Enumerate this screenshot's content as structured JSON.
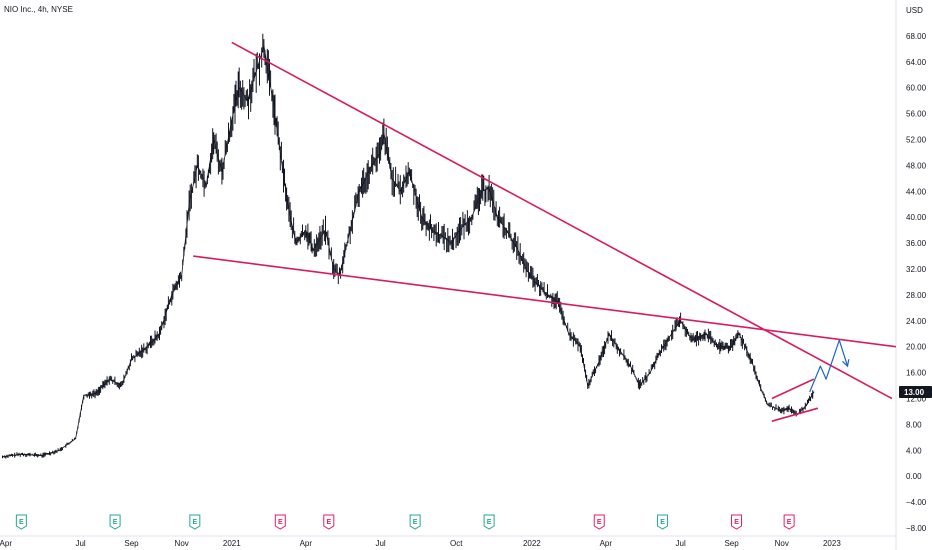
{
  "title": "NIO Inc., 4h, NYSE",
  "chart_data": {
    "type": "line",
    "title": "NIO Inc., 4h, NYSE",
    "ylabel": "USD",
    "currency_label": "USD",
    "ylim": [
      -8,
      72
    ],
    "yticks": [
      68,
      64,
      60,
      56,
      52,
      48,
      44,
      40,
      36,
      32,
      28,
      24,
      20,
      16,
      12,
      8,
      4,
      0,
      -4,
      -8
    ],
    "ytick_labels": [
      "68.00",
      "64.00",
      "60.00",
      "56.00",
      "52.00",
      "48.00",
      "44.00",
      "40.00",
      "36.00",
      "32.00",
      "28.00",
      "24.00",
      "20.00",
      "16.00",
      "12.00",
      "8.00",
      "4.00",
      "0.00",
      "−4.00",
      "−8.00"
    ],
    "xtick_labels": [
      "Apr",
      "Jul",
      "Sep",
      "Nov",
      "2021",
      "Apr",
      "Jul",
      "Oct",
      "2022",
      "Apr",
      "Jul",
      "Sep",
      "Nov",
      "2023"
    ],
    "xtick_dates": [
      "2020-04-01",
      "2020-07-01",
      "2020-09-01",
      "2020-11-01",
      "2021-01-01",
      "2021-04-01",
      "2021-07-01",
      "2021-10-01",
      "2022-01-01",
      "2022-04-01",
      "2022-07-01",
      "2022-09-01",
      "2022-11-01",
      "2023-01-01"
    ],
    "xlim": [
      "2020-03-25",
      "2023-03-20"
    ],
    "current_price": 13.0,
    "current_price_label": "13.00",
    "series": [
      {
        "color": "#131722",
        "x": [
          "2020-03-28",
          "2020-04-20",
          "2020-05-15",
          "2020-06-05",
          "2020-06-25",
          "2020-07-05",
          "2020-07-20",
          "2020-08-05",
          "2020-08-20",
          "2020-09-01",
          "2020-09-20",
          "2020-10-05",
          "2020-10-20",
          "2020-11-01",
          "2020-11-10",
          "2020-11-20",
          "2020-12-01",
          "2020-12-10",
          "2020-12-20",
          "2021-01-01",
          "2021-01-10",
          "2021-01-20",
          "2021-02-01",
          "2021-02-09",
          "2021-02-20",
          "2021-03-01",
          "2021-03-10",
          "2021-03-20",
          "2021-04-01",
          "2021-04-10",
          "2021-04-25",
          "2021-05-05",
          "2021-05-12",
          "2021-05-25",
          "2021-06-05",
          "2021-06-20",
          "2021-07-01",
          "2021-07-05",
          "2021-07-15",
          "2021-07-25",
          "2021-08-05",
          "2021-08-20",
          "2021-09-01",
          "2021-09-15",
          "2021-09-25",
          "2021-10-05",
          "2021-10-20",
          "2021-11-01",
          "2021-11-10",
          "2021-11-20",
          "2021-12-01",
          "2021-12-15",
          "2021-12-25",
          "2022-01-05",
          "2022-01-20",
          "2022-02-01",
          "2022-02-15",
          "2022-03-01",
          "2022-03-10",
          "2022-03-25",
          "2022-04-05",
          "2022-04-15",
          "2022-05-01",
          "2022-05-12",
          "2022-05-25",
          "2022-06-05",
          "2022-06-20",
          "2022-07-01",
          "2022-07-15",
          "2022-08-01",
          "2022-08-15",
          "2022-09-01",
          "2022-09-10",
          "2022-09-25",
          "2022-10-05",
          "2022-10-15",
          "2022-10-25",
          "2022-11-01",
          "2022-11-10",
          "2022-11-20",
          "2022-12-01",
          "2022-12-10"
        ],
        "values": [
          3.0,
          3.4,
          3.2,
          4.0,
          5.8,
          12.5,
          12.8,
          15.0,
          14.0,
          18.0,
          20.0,
          22.0,
          28.0,
          31.0,
          42.0,
          48.0,
          45.0,
          52.0,
          47.0,
          55.0,
          60.0,
          58.0,
          63.0,
          66.5,
          58.0,
          50.0,
          42.0,
          36.0,
          38.0,
          35.0,
          38.0,
          32.0,
          31.0,
          38.0,
          44.0,
          48.0,
          50.0,
          53.0,
          46.0,
          44.0,
          47.0,
          40.0,
          38.0,
          37.0,
          36.0,
          38.0,
          40.0,
          44.0,
          44.5,
          40.0,
          38.0,
          35.0,
          32.0,
          30.0,
          28.0,
          27.0,
          22.0,
          20.0,
          14.0,
          18.0,
          22.0,
          20.0,
          17.0,
          14.0,
          16.0,
          19.0,
          22.0,
          24.0,
          21.0,
          22.0,
          20.0,
          20.0,
          22.0,
          18.0,
          14.0,
          11.0,
          10.5,
          10.0,
          10.5,
          9.5,
          11.0,
          13.0
        ]
      }
    ],
    "annotations": [
      {
        "type": "trendline",
        "color": "#d81b60",
        "points": [
          [
            "2021-01-01",
            67.0
          ],
          [
            "2023-03-15",
            12.0
          ]
        ]
      },
      {
        "type": "trendline",
        "color": "#d81b60",
        "points": [
          [
            "2020-11-15",
            34.0
          ],
          [
            "2023-03-20",
            20.0
          ]
        ]
      },
      {
        "type": "trendline",
        "color": "#d81b60",
        "points": [
          [
            "2022-10-20",
            12.0
          ],
          [
            "2022-12-10",
            15.0
          ]
        ]
      },
      {
        "type": "trendline",
        "color": "#d81b60",
        "points": [
          [
            "2022-10-20",
            8.5
          ],
          [
            "2022-12-15",
            10.5
          ]
        ]
      },
      {
        "type": "projection",
        "color": "#1e63c8",
        "points": [
          [
            "2022-12-05",
            13.0
          ],
          [
            "2022-12-18",
            17.0
          ],
          [
            "2022-12-25",
            15.0
          ],
          [
            "2023-01-10",
            21.0
          ],
          [
            "2023-01-20",
            17.0
          ]
        ]
      }
    ],
    "earnings_markers": [
      {
        "date": "2020-04-20",
        "label": "E",
        "color": "#26a69a"
      },
      {
        "date": "2020-08-12",
        "label": "E",
        "color": "#26a69a"
      },
      {
        "date": "2020-11-17",
        "label": "E",
        "color": "#26a69a"
      },
      {
        "date": "2021-03-01",
        "label": "E",
        "color": "#e91e63"
      },
      {
        "date": "2021-04-29",
        "label": "E",
        "color": "#e91e63"
      },
      {
        "date": "2021-08-12",
        "label": "E",
        "color": "#26a69a"
      },
      {
        "date": "2021-11-10",
        "label": "E",
        "color": "#26a69a"
      },
      {
        "date": "2022-03-24",
        "label": "E",
        "color": "#e91e63"
      },
      {
        "date": "2022-06-09",
        "label": "E",
        "color": "#26a69a"
      },
      {
        "date": "2022-09-07",
        "label": "E",
        "color": "#e91e63"
      },
      {
        "date": "2022-11-10",
        "label": "E",
        "color": "#e91e63"
      }
    ],
    "grid": false
  }
}
